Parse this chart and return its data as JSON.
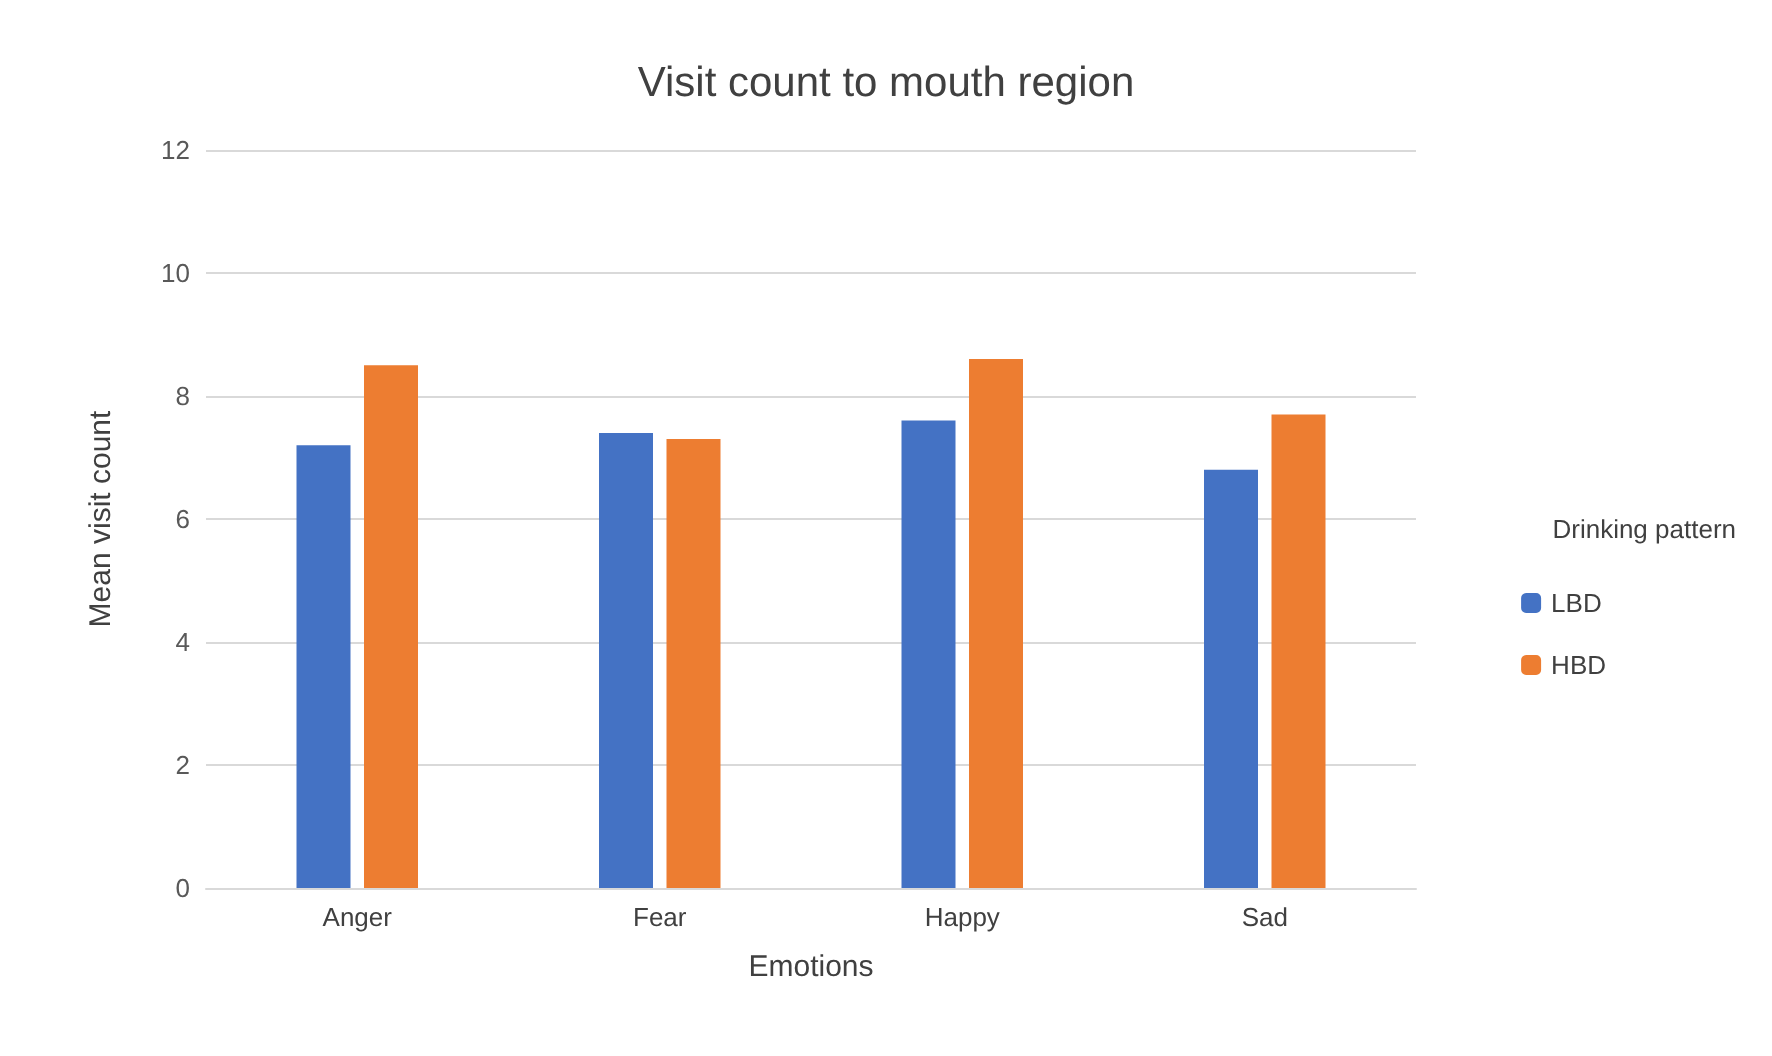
{
  "chart_data": {
    "type": "bar",
    "title": "Visit count to mouth region",
    "xlabel": "Emotions",
    "ylabel": "Mean visit count",
    "legend_title": "Drinking pattern",
    "categories": [
      "Anger",
      "Fear",
      "Happy",
      "Sad"
    ],
    "series": [
      {
        "name": "LBD",
        "color": "#4472c4",
        "values": [
          7.2,
          7.4,
          7.6,
          6.8
        ]
      },
      {
        "name": "HBD",
        "color": "#ed7d31",
        "values": [
          8.5,
          7.3,
          8.6,
          7.7
        ]
      }
    ],
    "ylim": [
      0,
      12
    ],
    "yticks": [
      0,
      2,
      4,
      6,
      8,
      10,
      12
    ],
    "grid": "y",
    "legend": "right"
  }
}
